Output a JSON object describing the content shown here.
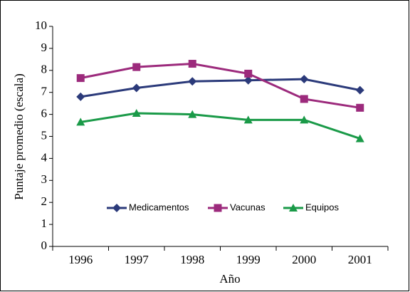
{
  "chart_data": {
    "type": "line",
    "x_label": "Año",
    "y_label": "Puntaje promedio (escala)",
    "categories": [
      "1996",
      "1997",
      "1998",
      "1999",
      "2000",
      "2001"
    ],
    "series": [
      {
        "name": "Medicamentos",
        "color": "#2b3a7a",
        "marker": "diamond",
        "values": [
          6.8,
          7.2,
          7.5,
          7.55,
          7.6,
          7.1
        ]
      },
      {
        "name": "Vacunas",
        "color": "#9c2a7c",
        "marker": "square",
        "values": [
          7.65,
          8.15,
          8.3,
          7.85,
          6.7,
          6.3
        ]
      },
      {
        "name": "Equipos",
        "color": "#1a9a48",
        "marker": "triangle",
        "values": [
          5.65,
          6.05,
          6.0,
          5.75,
          5.75,
          4.9
        ]
      }
    ],
    "ylim": [
      0,
      10
    ],
    "yticks": [
      0,
      1,
      2,
      3,
      4,
      5,
      6,
      7,
      8,
      9,
      10
    ],
    "grid": false,
    "legend": "center"
  }
}
